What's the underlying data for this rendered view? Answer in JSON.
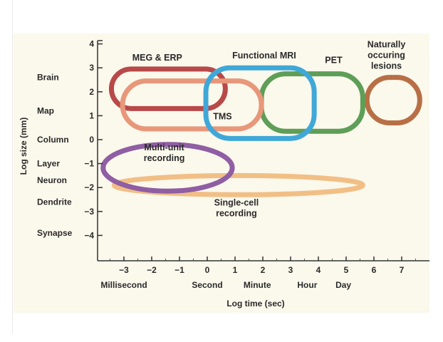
{
  "chart_data": {
    "type": "region",
    "xlabel": "Log time (sec)",
    "ylabel": "Log size (mm)",
    "xlim": [
      -4,
      8
    ],
    "ylim": [
      -5,
      4
    ],
    "x_ticks": [
      -3,
      -2,
      -1,
      0,
      1,
      2,
      3,
      4,
      5,
      6,
      7
    ],
    "y_ticks": [
      4,
      3,
      2,
      1,
      0,
      -1,
      -2,
      -3,
      -4
    ],
    "x_categories": [
      {
        "label": "Millisecond",
        "x": -3
      },
      {
        "label": "Second",
        "x": 0
      },
      {
        "label": "Minute",
        "x": 1.8
      },
      {
        "label": "Hour",
        "x": 3.6
      },
      {
        "label": "Day",
        "x": 4.9
      }
    ],
    "y_categories": [
      {
        "label": "Brain",
        "y": 2.6
      },
      {
        "label": "Map",
        "y": 1.2
      },
      {
        "label": "Column",
        "y": 0
      },
      {
        "label": "Layer",
        "y": -1
      },
      {
        "label": "Neuron",
        "y": -1.7
      },
      {
        "label": "Dendrite",
        "y": -2.6
      },
      {
        "label": "Synapse",
        "y": -3.9
      }
    ],
    "regions": [
      {
        "name": "Naturally occuring lesions",
        "label_lines": [
          "Naturally",
          "occuring",
          "lesions"
        ],
        "x": [
          5.75,
          7.65
        ],
        "y": [
          0.7,
          2.6
        ],
        "color": "#b86f45",
        "label_x": 6.45,
        "label_y": 3.85
      },
      {
        "name": "PET",
        "label_lines": [
          "PET"
        ],
        "x": [
          1.95,
          5.6
        ],
        "y": [
          0.35,
          2.75
        ],
        "color": "#5e9e57",
        "label_x": 4.55,
        "label_y": 3.2
      },
      {
        "name": "MEG & ERP",
        "label_lines": [
          "MEG & ERP"
        ],
        "x": [
          -3.45,
          0.65
        ],
        "y": [
          1.3,
          2.95
        ],
        "color": "#b84949",
        "label_x": -1.8,
        "label_y": 3.3
      },
      {
        "name": "TMS",
        "label_lines": [
          "TMS"
        ],
        "x": [
          -3.05,
          1.95
        ],
        "y": [
          0.45,
          2.45
        ],
        "color": "#e8977a",
        "label_x": 0.55,
        "label_y": 0.85
      },
      {
        "name": "Functional MRI",
        "label_lines": [
          "Functional MRI"
        ],
        "x": [
          -0.05,
          3.85
        ],
        "y": [
          0.05,
          3.0
        ],
        "color": "#3fa8d8",
        "label_x": 2.05,
        "label_y": 3.4
      },
      {
        "name": "Single-cell recording",
        "label_lines": [
          "Single-cell",
          "recording"
        ],
        "x": [
          -3.35,
          5.6
        ],
        "y": [
          -2.3,
          -1.5
        ],
        "color": "#f1bf86",
        "label_x": 1.05,
        "label_y": -2.75
      },
      {
        "name": "Multi-unit recording",
        "label_lines": [
          "Multi-unit",
          "recording"
        ],
        "x": [
          -3.75,
          0.9
        ],
        "y": [
          -2.15,
          -0.2
        ],
        "color": "#8f5ea3",
        "label_x": -1.55,
        "label_y": -0.45
      }
    ]
  }
}
